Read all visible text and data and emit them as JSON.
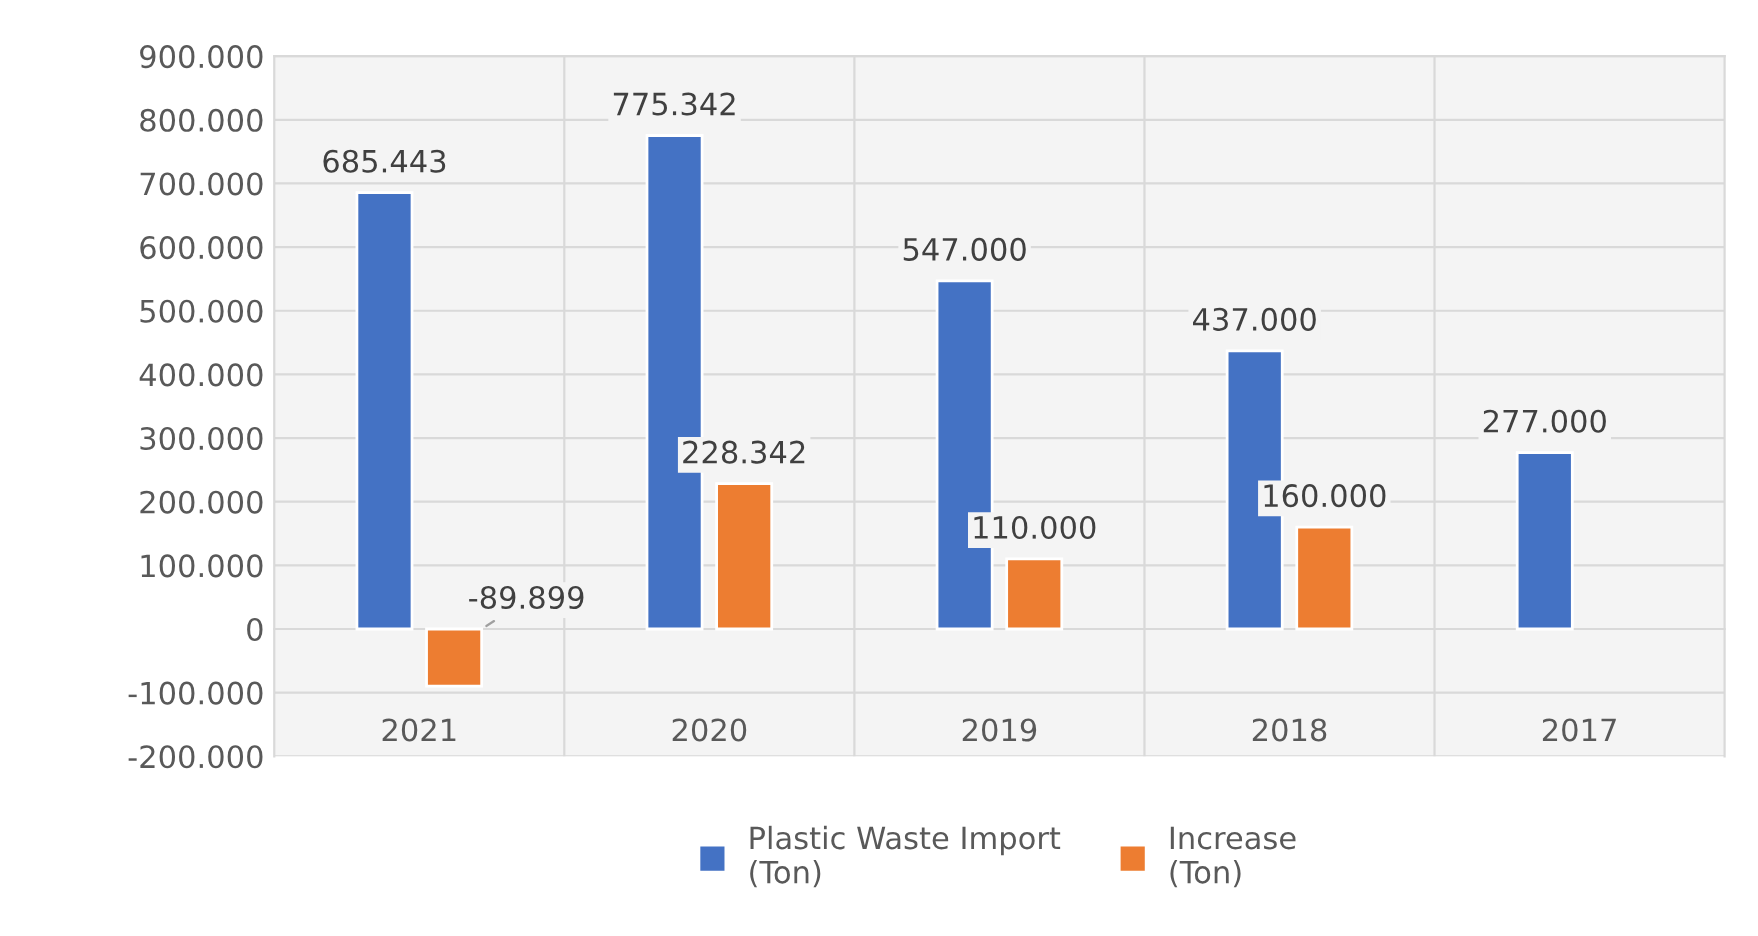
{
  "chart_data": {
    "type": "bar",
    "categories": [
      "2021",
      "2020",
      "2019",
      "2018",
      "2017"
    ],
    "series": [
      {
        "name": "Plastic Waste Import\n(Ton)",
        "color": "#4472c4",
        "values": [
          685443,
          775342,
          547000,
          437000,
          277000
        ],
        "value_labels": [
          "685.443",
          "775.342",
          "547.000",
          "437.000",
          "277.000"
        ]
      },
      {
        "name": "Increase\n(Ton)",
        "color": "#ed7d31",
        "values": [
          -89899,
          228342,
          110000,
          160000,
          null
        ],
        "value_labels": [
          "-89.899",
          "228.342",
          "110.000",
          "160.000",
          null
        ]
      }
    ],
    "ylim": [
      -200000,
      900000
    ],
    "yticks": [
      {
        "value": -200000,
        "label": "-200.000"
      },
      {
        "value": -100000,
        "label": "-100.000"
      },
      0,
      {
        "value": 100000,
        "label": "100.000"
      },
      {
        "value": 200000,
        "label": "200.000"
      },
      {
        "value": 300000,
        "label": "300.000"
      },
      {
        "value": 400000,
        "label": "400.000"
      },
      {
        "value": 500000,
        "label": "500.000"
      },
      {
        "value": 600000,
        "label": "600.000"
      },
      {
        "value": 700000,
        "label": "700.000"
      },
      {
        "value": 800000,
        "label": "800.000"
      },
      {
        "value": 900000,
        "label": "900.000"
      }
    ],
    "grid": true,
    "legend": "bottom"
  }
}
